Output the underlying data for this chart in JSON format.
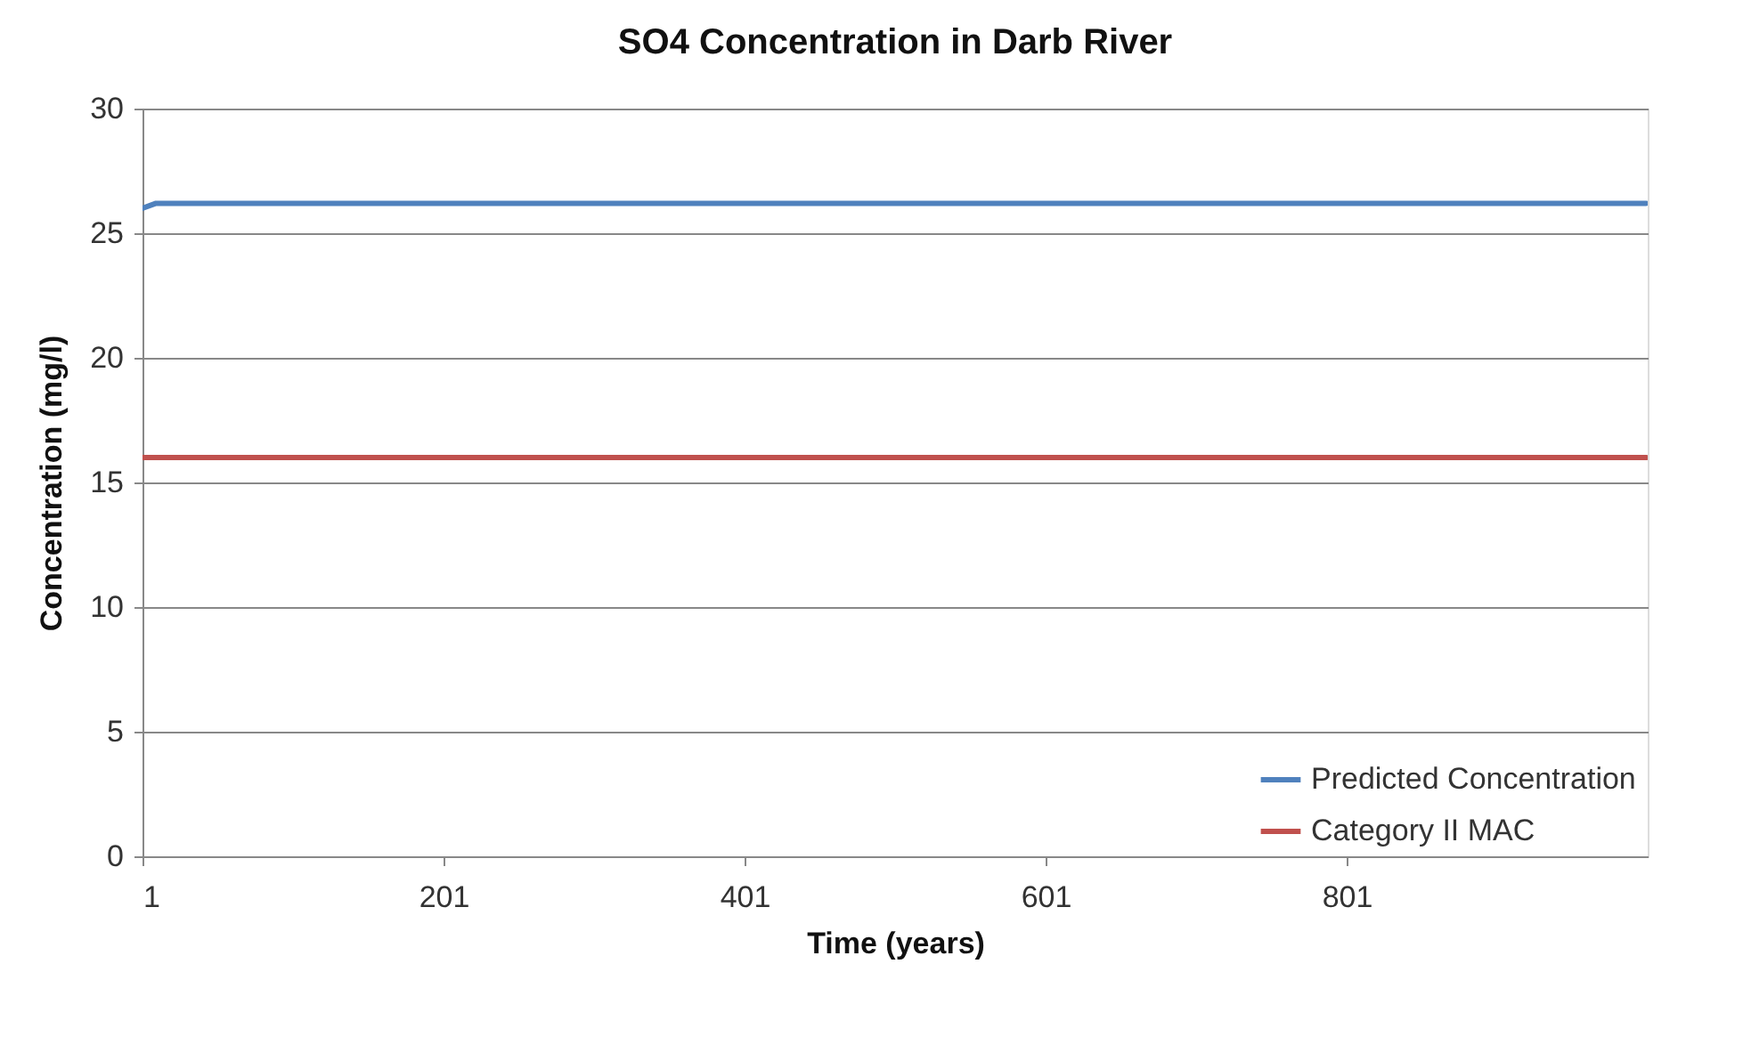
{
  "chart_data": {
    "type": "line",
    "title": "SO4 Concentration in Darb River",
    "xlabel": "Time  (years)",
    "ylabel": "Concentration (mg/l)",
    "xlim": [
      1,
      1001
    ],
    "xticks": [
      1,
      201,
      401,
      601,
      801
    ],
    "ylim": [
      0,
      30
    ],
    "yticks": [
      0,
      5,
      10,
      15,
      20,
      25,
      30
    ],
    "grid": "y",
    "legend": "bottom right",
    "marker": "none",
    "line_style": "solid",
    "series": [
      {
        "name": "Predicted Concentration",
        "color": "#4f81bd",
        "x": [
          1,
          10,
          1000
        ],
        "values": [
          26.0,
          26.2,
          26.2
        ]
      },
      {
        "name": "Category II MAC",
        "color": "#c0504d",
        "x": [
          1,
          1000
        ],
        "values": [
          16,
          16
        ]
      }
    ]
  }
}
